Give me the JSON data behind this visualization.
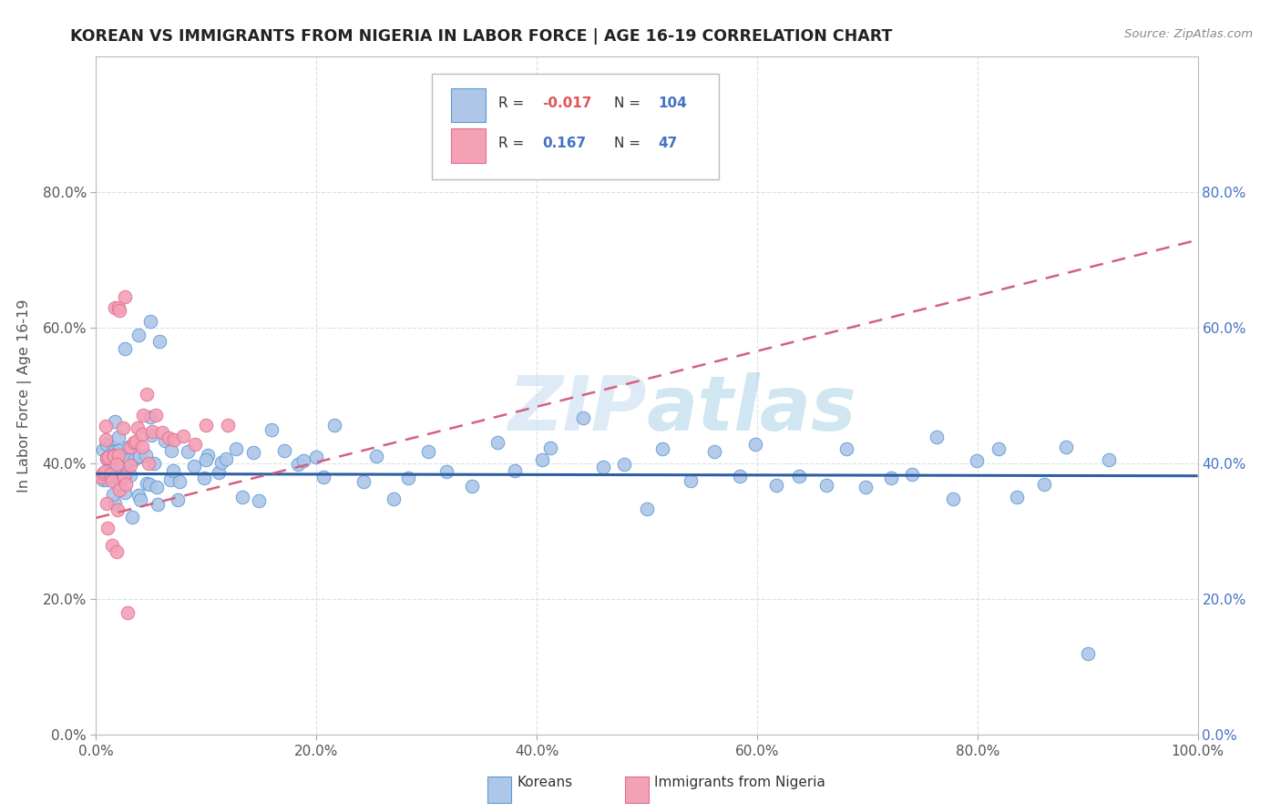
{
  "title": "KOREAN VS IMMIGRANTS FROM NIGERIA IN LABOR FORCE | AGE 16-19 CORRELATION CHART",
  "source_text": "Source: ZipAtlas.com",
  "ylabel": "In Labor Force | Age 16-19",
  "xlim": [
    0.0,
    1.0
  ],
  "ylim": [
    0.0,
    1.0
  ],
  "x_ticks": [
    0.0,
    0.2,
    0.4,
    0.6,
    0.8,
    1.0
  ],
  "x_tick_labels": [
    "0.0%",
    "20.0%",
    "40.0%",
    "60.0%",
    "80.0%",
    "100.0%"
  ],
  "y_ticks": [
    0.0,
    0.2,
    0.4,
    0.6,
    0.8
  ],
  "y_tick_labels": [
    "0.0%",
    "20.0%",
    "40.0%",
    "60.0%",
    "80.0%"
  ],
  "right_y_tick_labels": [
    "0.0%",
    "20.0%",
    "40.0%",
    "60.0%",
    "80.0%"
  ],
  "korean_R": "-0.017",
  "korean_N": "104",
  "nigeria_R": "0.167",
  "nigeria_N": "47",
  "korean_color": "#aec6e8",
  "korean_edge": "#5b9bd5",
  "nigeria_color": "#f4a0b5",
  "nigeria_edge": "#e07090",
  "korean_line_color": "#2e5fa3",
  "nigeria_line_color": "#d46080",
  "watermark_color": "#c8dff0",
  "legend_labels": [
    "Koreans",
    "Immigrants from Nigeria"
  ],
  "korean_x": [
    0.005,
    0.007,
    0.008,
    0.01,
    0.01,
    0.01,
    0.012,
    0.013,
    0.015,
    0.015,
    0.017,
    0.018,
    0.02,
    0.02,
    0.02,
    0.022,
    0.023,
    0.025,
    0.025,
    0.027,
    0.028,
    0.03,
    0.03,
    0.032,
    0.033,
    0.035,
    0.036,
    0.038,
    0.04,
    0.04,
    0.042,
    0.044,
    0.046,
    0.048,
    0.05,
    0.052,
    0.054,
    0.056,
    0.06,
    0.062,
    0.065,
    0.068,
    0.07,
    0.075,
    0.08,
    0.085,
    0.09,
    0.095,
    0.1,
    0.105,
    0.11,
    0.115,
    0.12,
    0.125,
    0.13,
    0.14,
    0.15,
    0.16,
    0.17,
    0.18,
    0.19,
    0.2,
    0.21,
    0.22,
    0.24,
    0.25,
    0.27,
    0.28,
    0.3,
    0.32,
    0.34,
    0.36,
    0.38,
    0.4,
    0.42,
    0.44,
    0.46,
    0.48,
    0.5,
    0.52,
    0.54,
    0.56,
    0.58,
    0.6,
    0.62,
    0.64,
    0.66,
    0.68,
    0.7,
    0.72,
    0.74,
    0.76,
    0.78,
    0.8,
    0.82,
    0.84,
    0.86,
    0.88,
    0.9,
    0.92,
    0.03,
    0.04,
    0.05,
    0.06
  ],
  "korean_y": [
    0.38,
    0.41,
    0.36,
    0.4,
    0.37,
    0.43,
    0.39,
    0.42,
    0.38,
    0.4,
    0.36,
    0.41,
    0.38,
    0.43,
    0.37,
    0.4,
    0.42,
    0.38,
    0.36,
    0.41,
    0.39,
    0.37,
    0.43,
    0.4,
    0.38,
    0.42,
    0.36,
    0.41,
    0.38,
    0.4,
    0.37,
    0.43,
    0.39,
    0.42,
    0.38,
    0.4,
    0.36,
    0.41,
    0.38,
    0.43,
    0.37,
    0.4,
    0.42,
    0.38,
    0.36,
    0.41,
    0.39,
    0.37,
    0.43,
    0.4,
    0.38,
    0.42,
    0.36,
    0.41,
    0.38,
    0.4,
    0.37,
    0.43,
    0.39,
    0.42,
    0.38,
    0.4,
    0.36,
    0.41,
    0.38,
    0.43,
    0.37,
    0.4,
    0.42,
    0.38,
    0.36,
    0.41,
    0.39,
    0.37,
    0.43,
    0.4,
    0.38,
    0.42,
    0.36,
    0.41,
    0.38,
    0.4,
    0.37,
    0.43,
    0.39,
    0.42,
    0.38,
    0.4,
    0.36,
    0.41,
    0.38,
    0.43,
    0.37,
    0.4,
    0.42,
    0.38,
    0.36,
    0.41,
    0.13,
    0.38,
    0.56,
    0.58,
    0.62,
    0.56
  ],
  "nigeria_x": [
    0.004,
    0.005,
    0.006,
    0.007,
    0.008,
    0.009,
    0.01,
    0.01,
    0.012,
    0.013,
    0.015,
    0.016,
    0.017,
    0.018,
    0.02,
    0.02,
    0.022,
    0.023,
    0.025,
    0.026,
    0.028,
    0.03,
    0.032,
    0.034,
    0.036,
    0.038,
    0.04,
    0.042,
    0.044,
    0.046,
    0.048,
    0.05,
    0.055,
    0.06,
    0.065,
    0.07,
    0.08,
    0.09,
    0.1,
    0.12,
    0.015,
    0.02,
    0.022,
    0.025,
    0.012,
    0.018,
    0.03
  ],
  "nigeria_y": [
    0.39,
    0.43,
    0.4,
    0.38,
    0.42,
    0.36,
    0.41,
    0.37,
    0.43,
    0.39,
    0.4,
    0.38,
    0.36,
    0.42,
    0.41,
    0.37,
    0.39,
    0.43,
    0.38,
    0.4,
    0.36,
    0.42,
    0.41,
    0.43,
    0.44,
    0.45,
    0.43,
    0.44,
    0.45,
    0.46,
    0.44,
    0.45,
    0.46,
    0.44,
    0.45,
    0.44,
    0.45,
    0.44,
    0.44,
    0.45,
    0.63,
    0.62,
    0.62,
    0.63,
    0.28,
    0.27,
    0.19
  ]
}
